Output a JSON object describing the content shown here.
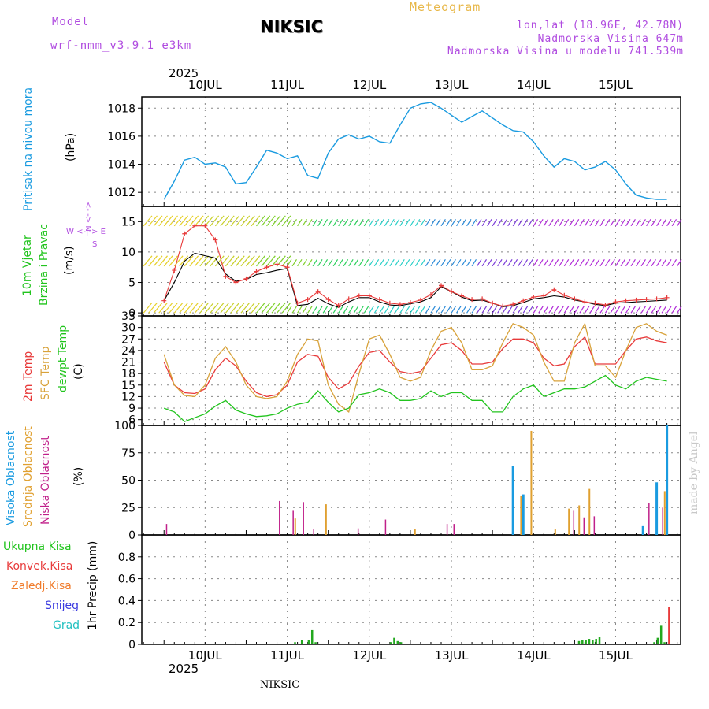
{
  "header": {
    "model_label": "Model",
    "model_name": "wrf-nmm_v3.9.1 e3km",
    "station": "NIKSIC",
    "product": "Meteogram",
    "coords": "lon,lat (18.96E, 42.78N)",
    "elevation": "Nadmorska Visina 647m",
    "model_elevation": "Nadmorska Visina u modelu 741.539m",
    "year_top": "2025",
    "year_bottom": "2025",
    "footer": "NIKSIC",
    "watermark": "made by Angel"
  },
  "days": [
    "10JUL",
    "11JUL",
    "12JUL",
    "13JUL",
    "14JUL",
    "15JUL"
  ],
  "colors": {
    "pressure": "#1a9be0",
    "t2m": "#e83a3a",
    "sfc": "#d8a23a",
    "dewpt": "#22c41e",
    "high": "#1a9be0",
    "mid": "#e0a030",
    "low": "#c0208a",
    "total": "#22a81e",
    "conv": "#e83a3a",
    "strat": "#f07b2a",
    "snow": "#3a3ae0",
    "graup": "#20c0c0"
  },
  "panels": {
    "pressure": {
      "label": "Pritisak na nivou mora",
      "unit": "(hPa)"
    },
    "wind": {
      "label1": "10m Vjetar",
      "label2": "Brzina i Pravac",
      "unit": "(m/s)",
      "compass": [
        "N",
        "S",
        "W",
        "E"
      ]
    },
    "temp": {
      "label1": "2m Temp",
      "label2": "SFC Temp",
      "label3": "dewpt Temp",
      "unit": "(C)"
    },
    "cloud": {
      "label1": "Visoka Oblacnost",
      "label2": "Srednja Oblacnost",
      "label3": "Niska Oblacnost",
      "unit": "(%)"
    },
    "precip": {
      "unit": "1hr Precip (mm)",
      "legend": [
        "Ukupna Kisa",
        "Konvek.Kisa",
        "Zaledj.Kisa",
        "Snijeg",
        "Grad"
      ]
    }
  },
  "chart_data": [
    {
      "type": "line",
      "title": "Pritisak na nivou mora",
      "ylabel": "(hPa)",
      "ylim": [
        1011,
        1018.8
      ],
      "yticks": [
        1012,
        1014,
        1016,
        1018
      ],
      "x_hours": [
        0,
        3,
        6,
        9,
        12,
        15,
        18,
        21,
        24,
        27,
        30,
        33,
        36,
        39,
        42,
        45,
        48,
        51,
        54,
        57,
        60,
        63,
        66,
        69,
        72,
        75,
        78,
        81,
        84,
        87,
        90,
        93,
        96,
        99,
        102,
        105,
        108,
        111,
        114,
        117,
        120,
        123,
        126,
        129,
        132,
        135,
        138,
        141,
        144,
        147
      ],
      "series": [
        {
          "name": "pressure",
          "values": [
            1011.5,
            1012.8,
            1014.3,
            1014.5,
            1014.0,
            1014.1,
            1013.8,
            1012.6,
            1012.7,
            1013.8,
            1015.0,
            1014.8,
            1014.4,
            1014.6,
            1013.2,
            1013.0,
            1014.8,
            1015.8,
            1016.1,
            1015.8,
            1016.0,
            1015.6,
            1015.5,
            1016.8,
            1018.0,
            1018.3,
            1018.4,
            1018.0,
            1017.5,
            1017.0,
            1017.4,
            1017.8,
            1017.3,
            1016.8,
            1016.4,
            1016.3,
            1015.6,
            1014.6,
            1013.8,
            1014.4,
            1014.2,
            1013.6,
            1013.8,
            1014.2,
            1013.6,
            1012.6,
            1011.8,
            1011.6,
            1011.5,
            1011.5
          ]
        }
      ]
    },
    {
      "type": "line",
      "title": "10m Vjetar Brzina i Pravac",
      "ylabel": "(m/s)",
      "ylim": [
        -0.5,
        17.5
      ],
      "yticks": [
        0,
        5,
        10,
        15
      ],
      "x_hours": [
        0,
        3,
        6,
        9,
        12,
        15,
        18,
        21,
        24,
        27,
        30,
        33,
        36,
        39,
        42,
        45,
        48,
        51,
        54,
        57,
        60,
        63,
        66,
        69,
        72,
        75,
        78,
        81,
        84,
        87,
        90,
        93,
        96,
        99,
        102,
        105,
        108,
        111,
        114,
        117,
        120,
        123,
        126,
        129,
        132,
        135,
        138,
        141,
        144,
        147
      ],
      "series": [
        {
          "name": "mean wind",
          "values": [
            2,
            5,
            8.5,
            9.8,
            9.4,
            9.0,
            6.4,
            5.2,
            5.5,
            6.3,
            6.6,
            7.0,
            7.3,
            1.2,
            1.4,
            2.4,
            1.5,
            0.9,
            1.8,
            2.5,
            2.5,
            1.8,
            1.3,
            1.2,
            1.5,
            1.8,
            2.5,
            4.3,
            3.5,
            2.6,
            2.0,
            2.1,
            1.6,
            1.0,
            1.2,
            1.7,
            2.3,
            2.5,
            2.8,
            2.6,
            2.1,
            1.8,
            1.4,
            1.2,
            1.6,
            1.7,
            1.8,
            1.9,
            2.0,
            2.1
          ]
        },
        {
          "name": "gust",
          "values": [
            2,
            7,
            13,
            14.3,
            14.3,
            12.0,
            6.0,
            5.0,
            5.6,
            6.8,
            7.5,
            8.0,
            7.5,
            1.6,
            2.2,
            3.5,
            2.2,
            1.2,
            2.3,
            2.8,
            2.8,
            2.2,
            1.6,
            1.4,
            1.7,
            2.1,
            3.0,
            4.5,
            3.5,
            2.8,
            2.2,
            2.3,
            1.6,
            1.1,
            1.4,
            2.0,
            2.6,
            2.8,
            3.8,
            2.9,
            2.3,
            1.8,
            1.6,
            1.3,
            1.8,
            2.0,
            2.1,
            2.2,
            2.3,
            2.5
          ]
        }
      ]
    },
    {
      "type": "line",
      "title": "2m Temp / SFC Temp / dewpt Temp",
      "ylabel": "(C)",
      "ylim": [
        4.5,
        33
      ],
      "yticks": [
        6,
        9,
        12,
        15,
        18,
        21,
        24,
        27,
        30,
        33
      ],
      "x_hours": [
        0,
        3,
        6,
        9,
        12,
        15,
        18,
        21,
        24,
        27,
        30,
        33,
        36,
        39,
        42,
        45,
        48,
        51,
        54,
        57,
        60,
        63,
        66,
        69,
        72,
        75,
        78,
        81,
        84,
        87,
        90,
        93,
        96,
        99,
        102,
        105,
        108,
        111,
        114,
        117,
        120,
        123,
        126,
        129,
        132,
        135,
        138,
        141,
        144,
        147
      ],
      "series": [
        {
          "name": "2m Temp",
          "values": [
            21,
            15,
            13,
            12.8,
            14,
            19,
            22,
            20,
            16,
            13,
            12,
            12.5,
            15,
            21,
            23,
            22.5,
            17,
            14,
            15.5,
            20,
            23.5,
            24,
            21,
            18.5,
            18,
            18.5,
            22,
            25.5,
            26,
            24,
            20.5,
            20.5,
            21,
            24.5,
            27,
            27,
            26,
            22,
            20,
            20.5,
            25,
            27.5,
            20.5,
            20.5,
            20.5,
            24,
            27,
            27.5,
            26.5,
            26
          ]
        },
        {
          "name": "SFC Temp",
          "values": [
            23,
            15,
            12.3,
            12,
            15,
            22,
            25,
            21,
            15,
            12,
            11.5,
            12,
            16,
            23,
            27,
            26.5,
            15,
            10,
            8,
            18,
            27,
            28,
            23,
            17,
            16,
            17,
            24,
            29,
            30,
            26,
            19,
            19,
            20,
            26,
            31,
            30,
            28,
            21,
            16,
            16,
            26,
            31,
            20,
            20,
            17,
            24,
            30,
            31,
            29,
            28
          ]
        },
        {
          "name": "dewpt Temp",
          "values": [
            9,
            8,
            5.5,
            6.5,
            7.5,
            9.5,
            11,
            8.5,
            7.5,
            6.8,
            7,
            7.5,
            9,
            10,
            10.5,
            13.5,
            10.5,
            8,
            9,
            12.5,
            13,
            14,
            13,
            11,
            11,
            11.5,
            13.5,
            12,
            13,
            13,
            11,
            11,
            8,
            8,
            12,
            14,
            15,
            12,
            13,
            14,
            14,
            14.5,
            16,
            17.5,
            15,
            14,
            16,
            17,
            16.5,
            16
          ]
        }
      ]
    },
    {
      "type": "bar",
      "title": "Visoka / Srednja / Niska Oblacnost",
      "ylabel": "(%)",
      "ylim": [
        0,
        100
      ],
      "yticks": [
        0,
        25,
        50,
        75,
        100
      ],
      "series": [
        {
          "name": "Visoka Oblacnost",
          "hours": [
            102,
            105,
            140,
            144,
            147
          ],
          "values": [
            63,
            37,
            8,
            48,
            100
          ]
        },
        {
          "name": "Srednja Oblacnost",
          "hours": [
            38,
            47,
            73,
            104,
            107,
            114,
            118,
            121,
            124,
            146
          ],
          "values": [
            15,
            28,
            5,
            36,
            95,
            5,
            24,
            27,
            42,
            40
          ]
        },
        {
          "name": "Niska Oblacnost",
          "hours": [
            0,
            33,
            37,
            40,
            43,
            56,
            64,
            82,
            84,
            119,
            122,
            125,
            141,
            145
          ],
          "values": [
            10,
            31,
            22,
            30,
            5,
            6,
            14,
            10,
            10,
            22,
            16,
            17,
            29,
            25
          ]
        }
      ]
    },
    {
      "type": "bar",
      "title": "1hr Precip",
      "ylabel": "1hr Precip (mm)",
      "ylim": [
        0,
        1
      ],
      "yticks": [
        0,
        0.2,
        0.4,
        0.6,
        0.8
      ],
      "series": [
        {
          "name": "Ukupna Kisa",
          "hours": [
            38,
            40,
            42,
            43,
            44,
            66,
            67,
            68,
            69,
            121,
            122,
            123,
            124,
            125,
            126,
            127,
            143,
            144,
            145,
            146
          ],
          "values": [
            0.02,
            0.04,
            0.04,
            0.13,
            0.02,
            0.02,
            0.06,
            0.03,
            0.02,
            0.03,
            0.04,
            0.04,
            0.05,
            0.04,
            0.05,
            0.07,
            0.02,
            0.06,
            0.17,
            0.02
          ]
        },
        {
          "name": "Konvek.Kisa",
          "hours": [
            147
          ],
          "values": [
            0.34
          ]
        }
      ]
    }
  ]
}
